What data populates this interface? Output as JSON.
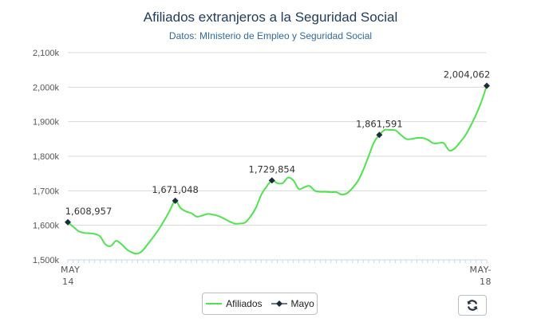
{
  "chart_data": {
    "type": "line",
    "title": "Afiliados extranjeros a la Seguridad Social",
    "subtitle": "Datos: MInisterio de Empleo y Seguridad Social",
    "xlabel": "",
    "ylabel": "",
    "ylim": [
      1500000,
      2100000
    ],
    "y_ticks": [
      1500000,
      1600000,
      1700000,
      1800000,
      1900000,
      2000000,
      2100000
    ],
    "y_tick_labels": [
      "1,500k",
      "1,600k",
      "1,700k",
      "1,800k",
      "1,900k",
      "2,000k",
      "2,100k"
    ],
    "x_ticks": [
      {
        "line1": "MAY",
        "line2": "14"
      },
      {
        "line1": "MAY-",
        "line2": "18"
      }
    ],
    "grid": true,
    "legend": "bottom",
    "series": [
      {
        "name": "Afiliados",
        "color": "#4ee44e",
        "values": [
          1608957,
          1596000,
          1583000,
          1578000,
          1577000,
          1575000,
          1568000,
          1545000,
          1540000,
          1555000,
          1545000,
          1530000,
          1521000,
          1518000,
          1528000,
          1548000,
          1568000,
          1590000,
          1615000,
          1643000,
          1671048,
          1650000,
          1640000,
          1635000,
          1625000,
          1628000,
          1633000,
          1631000,
          1627000,
          1620000,
          1612000,
          1605000,
          1605000,
          1608000,
          1625000,
          1650000,
          1688000,
          1712000,
          1729854,
          1722000,
          1722000,
          1738000,
          1730000,
          1705000,
          1710000,
          1714000,
          1700000,
          1697000,
          1697000,
          1696000,
          1696000,
          1689000,
          1693000,
          1708000,
          1728000,
          1760000,
          1800000,
          1840000,
          1861591,
          1876000,
          1876000,
          1875000,
          1862000,
          1850000,
          1850000,
          1853000,
          1853000,
          1848000,
          1838000,
          1838000,
          1838000,
          1817000,
          1822000,
          1840000,
          1860000,
          1888000,
          1920000,
          1958000,
          2004062
        ]
      },
      {
        "name": "Mayo",
        "color": "#1a2b3c",
        "points": [
          {
            "index": 0,
            "value": 1608957,
            "label": "1,608,957"
          },
          {
            "index": 20,
            "value": 1671048,
            "label": "1,671,048"
          },
          {
            "index": 38,
            "value": 1729854,
            "label": "1,729,854"
          },
          {
            "index": 58,
            "value": 1861591,
            "label": "1,861,591"
          },
          {
            "index": 78,
            "value": 2004062,
            "label": "2,004,062"
          }
        ]
      }
    ]
  },
  "legend": {
    "afiliados_label": "Afiliados",
    "mayo_label": "Mayo"
  },
  "reset_button": {
    "icon": "refresh-icon"
  }
}
